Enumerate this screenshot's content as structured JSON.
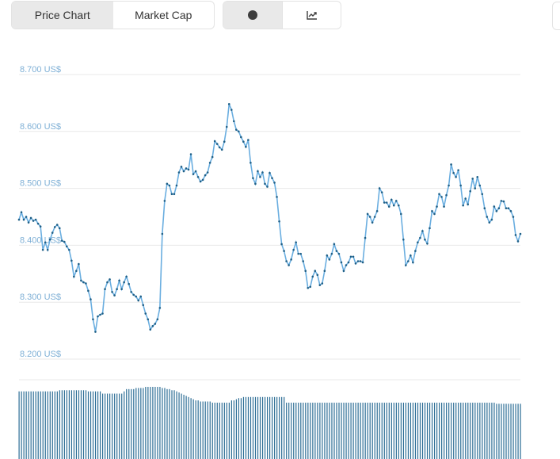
{
  "tabs_left": {
    "price_chart": "Price Chart",
    "market_cap": "Market Cap"
  },
  "tabs_right": {
    "dot_icon": "dot-icon",
    "line_chart_icon": "line-chart-icon"
  },
  "colors": {
    "line": "#6aaee0",
    "marker": "#1f5f86",
    "grid": "#e8e8e8",
    "volume": "#2d6e96",
    "axis_label": "#7fb0d6",
    "tab_active_bg": "#e9e9e9"
  },
  "chart_data": {
    "type": "line",
    "title": "",
    "xlabel": "",
    "ylabel": "",
    "y_ticks": [
      "8.700 US$",
      "8.600 US$",
      "8.500 US$",
      "8.400 US$",
      "8.300 US$",
      "8.200 US$"
    ],
    "ylim": [
      8200,
      8700
    ],
    "grid": true,
    "price": [
      8445,
      8458,
      8445,
      8450,
      8440,
      8448,
      8443,
      8445,
      8438,
      8433,
      8392,
      8405,
      8392,
      8410,
      8422,
      8432,
      8436,
      8430,
      8408,
      8406,
      8398,
      8392,
      8373,
      8345,
      8355,
      8367,
      8338,
      8335,
      8333,
      8320,
      8305,
      8270,
      8248,
      8275,
      8278,
      8280,
      8323,
      8335,
      8340,
      8318,
      8312,
      8323,
      8338,
      8323,
      8335,
      8345,
      8332,
      8318,
      8313,
      8310,
      8303,
      8310,
      8295,
      8280,
      8270,
      8252,
      8258,
      8262,
      8270,
      8290,
      8420,
      8478,
      8508,
      8505,
      8490,
      8490,
      8505,
      8528,
      8538,
      8530,
      8535,
      8533,
      8560,
      8525,
      8530,
      8520,
      8512,
      8515,
      8523,
      8528,
      8545,
      8555,
      8583,
      8578,
      8572,
      8568,
      8582,
      8608,
      8648,
      8638,
      8618,
      8603,
      8600,
      8590,
      8582,
      8573,
      8585,
      8545,
      8518,
      8508,
      8530,
      8520,
      8528,
      8508,
      8503,
      8527,
      8518,
      8510,
      8485,
      8442,
      8402,
      8390,
      8372,
      8365,
      8375,
      8392,
      8405,
      8385,
      8385,
      8372,
      8355,
      8325,
      8327,
      8345,
      8355,
      8348,
      8330,
      8333,
      8355,
      8382,
      8375,
      8385,
      8402,
      8390,
      8385,
      8370,
      8355,
      8365,
      8370,
      8380,
      8380,
      8368,
      8372,
      8372,
      8370,
      8413,
      8455,
      8450,
      8440,
      8450,
      8460,
      8500,
      8493,
      8475,
      8475,
      8468,
      8480,
      8470,
      8478,
      8470,
      8455,
      8410,
      8365,
      8372,
      8382,
      8370,
      8390,
      8405,
      8413,
      8425,
      8410,
      8403,
      8430,
      8460,
      8455,
      8468,
      8490,
      8485,
      8468,
      8488,
      8505,
      8542,
      8527,
      8520,
      8532,
      8505,
      8470,
      8482,
      8472,
      8495,
      8517,
      8500,
      8520,
      8505,
      8490,
      8465,
      8450,
      8440,
      8445,
      8468,
      8460,
      8465,
      8478,
      8477,
      8465,
      8465,
      8460,
      8450,
      8418,
      8407,
      8420
    ],
    "volume": [
      0.6,
      0.6,
      0.6,
      0.6,
      0.6,
      0.6,
      0.6,
      0.6,
      0.6,
      0.6,
      0.6,
      0.6,
      0.6,
      0.6,
      0.6,
      0.6,
      0.6,
      0.61,
      0.61,
      0.61,
      0.61,
      0.61,
      0.61,
      0.61,
      0.61,
      0.61,
      0.61,
      0.61,
      0.61,
      0.6,
      0.6,
      0.6,
      0.6,
      0.6,
      0.6,
      0.58,
      0.58,
      0.58,
      0.58,
      0.58,
      0.58,
      0.58,
      0.58,
      0.58,
      0.6,
      0.62,
      0.62,
      0.62,
      0.62,
      0.63,
      0.63,
      0.63,
      0.63,
      0.64,
      0.64,
      0.64,
      0.64,
      0.64,
      0.64,
      0.64,
      0.63,
      0.63,
      0.62,
      0.62,
      0.61,
      0.61,
      0.6,
      0.59,
      0.58,
      0.57,
      0.56,
      0.55,
      0.54,
      0.53,
      0.52,
      0.52,
      0.51,
      0.51,
      0.51,
      0.51,
      0.51,
      0.5,
      0.5,
      0.5,
      0.5,
      0.5,
      0.5,
      0.5,
      0.5,
      0.52,
      0.52,
      0.53,
      0.54,
      0.54,
      0.55,
      0.55,
      0.55,
      0.55,
      0.55,
      0.55,
      0.55,
      0.55,
      0.55,
      0.55,
      0.55,
      0.55,
      0.55,
      0.55,
      0.55,
      0.55,
      0.55,
      0.55,
      0.5,
      0.5,
      0.5,
      0.5,
      0.5,
      0.5,
      0.5,
      0.5,
      0.5,
      0.5,
      0.5,
      0.5,
      0.5,
      0.5,
      0.5,
      0.5,
      0.5,
      0.5,
      0.5,
      0.5,
      0.5,
      0.5,
      0.5,
      0.5,
      0.5,
      0.5,
      0.5,
      0.5,
      0.5,
      0.5,
      0.5,
      0.5,
      0.5,
      0.5,
      0.5,
      0.5,
      0.5,
      0.5,
      0.5,
      0.5,
      0.5,
      0.5,
      0.5,
      0.5,
      0.5,
      0.5,
      0.5,
      0.5,
      0.5,
      0.5,
      0.5,
      0.5,
      0.5,
      0.5,
      0.5,
      0.5,
      0.5,
      0.5,
      0.5,
      0.5,
      0.5,
      0.5,
      0.5,
      0.5,
      0.5,
      0.5,
      0.5,
      0.5,
      0.5,
      0.5,
      0.5,
      0.5,
      0.5,
      0.5,
      0.5,
      0.5,
      0.5,
      0.5,
      0.5,
      0.5,
      0.5,
      0.5,
      0.5,
      0.5,
      0.5,
      0.5,
      0.5,
      0.5,
      0.49,
      0.49,
      0.49,
      0.49,
      0.49,
      0.49,
      0.49,
      0.49,
      0.49,
      0.49,
      0.49
    ]
  }
}
